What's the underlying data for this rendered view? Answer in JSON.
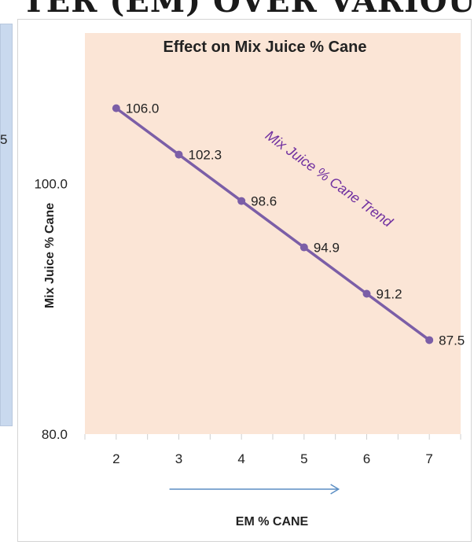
{
  "page": {
    "banner_fragment": "TER (EM) OVER VARIOUS NOR",
    "left_fragment": "5"
  },
  "chart_data": {
    "type": "line",
    "title": "Effect on Mix Juice % Cane",
    "xlabel": "EM % CANE",
    "ylabel": "Mix Juice % Cane",
    "x": [
      2,
      3,
      4,
      5,
      6,
      7
    ],
    "x_tick_labels": [
      "2",
      "3",
      "4",
      "5",
      "6",
      "7"
    ],
    "y_tick_labels": [
      "80.0",
      "100.0"
    ],
    "y_ticks": [
      80,
      100
    ],
    "ylim": [
      80,
      112
    ],
    "xlim": [
      1.5,
      7.5
    ],
    "series": [
      {
        "values": [
          106.0,
          102.3,
          98.6,
          94.9,
          91.2,
          87.5
        ],
        "data_labels": [
          "106.0",
          "102.3",
          "98.6",
          "94.9",
          "91.2",
          "87.5"
        ],
        "color": "#7b5ea7"
      }
    ],
    "annotation": "Mix Juice % Cane Trend",
    "annotation_color": "#7030a0",
    "arrow_color": "#5b8ec4",
    "plot_background": "#fbe5d6",
    "grid": false,
    "legend": "none"
  }
}
